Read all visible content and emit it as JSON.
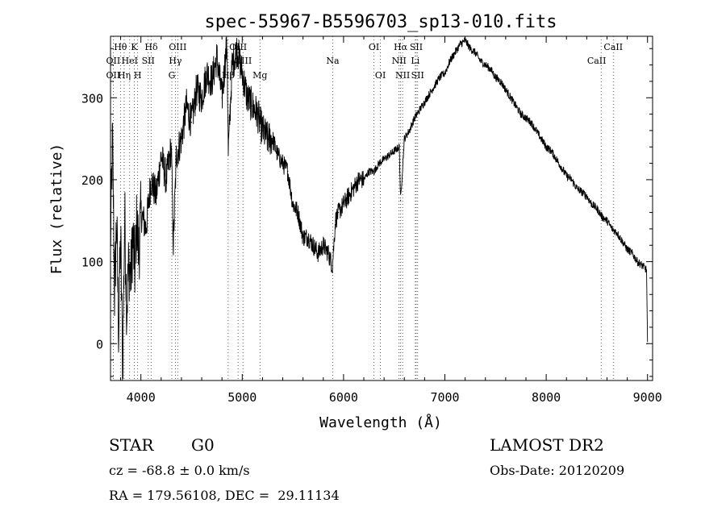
{
  "chart_data": {
    "type": "line",
    "title": "spec-55967-B5596703_sp13-010.fits",
    "xlabel": "Wavelength (Å)",
    "ylabel": "Flux (relative)",
    "xlim": [
      3700,
      9050
    ],
    "ylim": [
      -45,
      375
    ],
    "xticks": [
      4000,
      5000,
      6000,
      7000,
      8000,
      9000
    ],
    "xtick_labels": [
      "4000",
      "5000",
      "6000",
      "7000",
      "8000",
      "9000"
    ],
    "yticks": [
      0,
      100,
      200,
      300
    ],
    "ytick_labels": [
      "0",
      "100",
      "200",
      "300"
    ],
    "grid": false,
    "line_color": "#000000",
    "marker_color": "#cc0000",
    "series": [
      {
        "x": [
          3700,
          3720,
          3740,
          3760,
          3780,
          3800,
          3820,
          3840,
          3860,
          3880,
          3900,
          3920,
          3940,
          3960,
          3980,
          4000,
          4050,
          4100,
          4150,
          4200,
          4250,
          4300,
          4320,
          4350,
          4400,
          4450,
          4500,
          4550,
          4600,
          4650,
          4700,
          4750,
          4800,
          4850,
          4862,
          4900,
          4950,
          5000,
          5050,
          5100,
          5150,
          5200,
          5250,
          5300,
          5350,
          5400,
          5450,
          5500,
          5550,
          5600,
          5650,
          5700,
          5750,
          5800,
          5850,
          5890,
          5920,
          5950,
          6000,
          6050,
          6100,
          6150,
          6200,
          6250,
          6300,
          6350,
          6400,
          6450,
          6500,
          6550,
          6563,
          6600,
          6650,
          6700,
          6750,
          6800,
          6850,
          6900,
          6950,
          7000,
          7050,
          7100,
          7150,
          7200,
          7250,
          7300,
          7350,
          7400,
          7450,
          7500,
          7550,
          7600,
          7650,
          7700,
          7750,
          7800,
          7850,
          7900,
          7950,
          8000,
          8050,
          8100,
          8150,
          8200,
          8250,
          8300,
          8350,
          8400,
          8450,
          8500,
          8550,
          8600,
          8650,
          8700,
          8750,
          8800,
          8850,
          8900,
          8950,
          8990,
          9000
        ],
        "y": [
          120,
          250,
          60,
          150,
          20,
          130,
          -30,
          160,
          40,
          100,
          80,
          130,
          90,
          150,
          110,
          160,
          140,
          200,
          180,
          230,
          200,
          240,
          120,
          230,
          250,
          290,
          270,
          310,
          300,
          330,
          320,
          350,
          300,
          370,
          230,
          340,
          360,
          330,
          300,
          290,
          280,
          260,
          250,
          250,
          230,
          220,
          210,
          170,
          160,
          130,
          130,
          120,
          110,
          120,
          110,
          95,
          150,
          160,
          170,
          180,
          190,
          200,
          200,
          210,
          210,
          220,
          225,
          230,
          235,
          240,
          175,
          250,
          260,
          275,
          285,
          295,
          305,
          315,
          325,
          330,
          345,
          355,
          365,
          370,
          360,
          355,
          345,
          340,
          335,
          325,
          320,
          310,
          300,
          290,
          280,
          275,
          270,
          260,
          250,
          240,
          235,
          225,
          215,
          205,
          200,
          190,
          185,
          180,
          170,
          165,
          155,
          150,
          140,
          135,
          125,
          115,
          110,
          100,
          95,
          90,
          0
        ]
      }
    ],
    "spectral_lines": [
      {
        "label": "Hθ",
        "x": 3798,
        "row": 0
      },
      {
        "label": "K",
        "x": 3934,
        "row": 0
      },
      {
        "label": "Hδ",
        "x": 4102,
        "row": 0
      },
      {
        "label": "OIII",
        "x": 4363,
        "row": 0
      },
      {
        "label": "OIII",
        "x": 4959,
        "row": 0
      },
      {
        "label": "OI",
        "x": 6300,
        "row": 0
      },
      {
        "label": "Hα",
        "x": 6563,
        "row": 0
      },
      {
        "label": "SII",
        "x": 6717,
        "row": 0
      },
      {
        "label": "CaII",
        "x": 8662,
        "row": 0
      },
      {
        "label": "OII",
        "x": 3727,
        "row": 1
      },
      {
        "label": "HeI",
        "x": 3889,
        "row": 1
      },
      {
        "label": "SII",
        "x": 4072,
        "row": 1
      },
      {
        "label": "Hγ",
        "x": 4340,
        "row": 1
      },
      {
        "label": "OIII",
        "x": 5007,
        "row": 1
      },
      {
        "label": "Na",
        "x": 5893,
        "row": 1
      },
      {
        "label": "NII",
        "x": 6548,
        "row": 1
      },
      {
        "label": "Li",
        "x": 6708,
        "row": 1
      },
      {
        "label": "CaII",
        "x": 8498,
        "row": 1
      },
      {
        "label": "OII",
        "x": 3727,
        "row": 2
      },
      {
        "label": "Hη",
        "x": 3835,
        "row": 2
      },
      {
        "label": "H",
        "x": 3968,
        "row": 2
      },
      {
        "label": "G",
        "x": 4305,
        "row": 2
      },
      {
        "label": "Hβ",
        "x": 4861,
        "row": 2
      },
      {
        "label": "Mg",
        "x": 5175,
        "row": 2
      },
      {
        "label": "OI",
        "x": 6364,
        "row": 2
      },
      {
        "label": "NII",
        "x": 6583,
        "row": 2
      },
      {
        "label": "SII",
        "x": 6731,
        "row": 2
      }
    ],
    "red_line_positions": [
      8542,
      8662
    ],
    "blue_line_positions": [
      3727,
      3798,
      3835,
      3889,
      3934,
      3968,
      4072,
      4102,
      4305,
      4340,
      4363,
      4861,
      4959,
      5007,
      5175,
      5893,
      6300,
      6364,
      6548,
      6563,
      6583,
      6708,
      6717,
      6731
    ]
  },
  "info": {
    "object_class": "STAR",
    "subclass": "G0",
    "survey": "LAMOST DR2",
    "redshift": "cz = -68.8 ± 0.0 km/s",
    "obs_date": "Obs-Date: 20120209",
    "coords": "RA = 179.56108, DEC =  29.11134"
  }
}
